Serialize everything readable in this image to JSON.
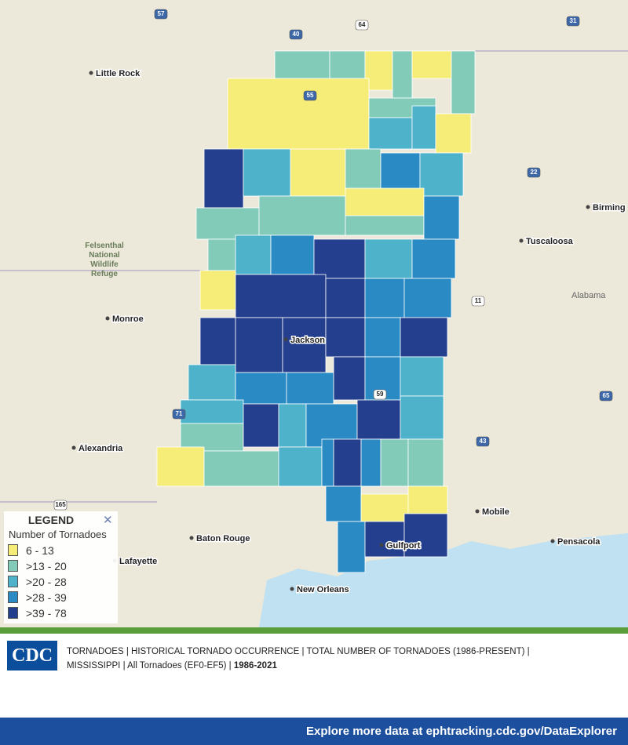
{
  "map": {
    "cities": [
      "Little Rock",
      "Monroe",
      "Alexandria",
      "Baton Rouge",
      "Lafayette",
      "New Orleans",
      "Mobile",
      "Pensacola",
      "Tuscaloosa",
      "Birming",
      "Jackson",
      "Gulfport"
    ],
    "parks": [
      "Felsenthal National Wildlife Refuge"
    ],
    "states": [
      "Alabama"
    ],
    "highways": [
      "57",
      "40",
      "64",
      "31",
      "22",
      "11",
      "43",
      "65",
      "165",
      "71",
      "55",
      "59"
    ]
  },
  "legend": {
    "title": "LEGEND",
    "subtitle": "Number of Tornadoes",
    "items": [
      {
        "label": "6 - 13",
        "color": "#f6ec78"
      },
      {
        "label": ">13 - 20",
        "color": "#82cbb9"
      },
      {
        "label": ">20 - 28",
        "color": "#4eb2cb"
      },
      {
        "label": ">28 - 39",
        "color": "#2a8ac4"
      },
      {
        "label": ">39 - 78",
        "color": "#243f8e"
      }
    ]
  },
  "caption": {
    "logo": "CDC",
    "line1": "TORNADOES | HISTORICAL TORNADO OCCURRENCE | TOTAL NUMBER OF TORNADOES (1986-PRESENT) |",
    "line2": "MISSISSIPPI | All Tornadoes (EF0-EF5) |",
    "years": "1986-2021"
  },
  "footer": "Explore more data at ephtracking.cdc.gov/DataExplorer"
}
